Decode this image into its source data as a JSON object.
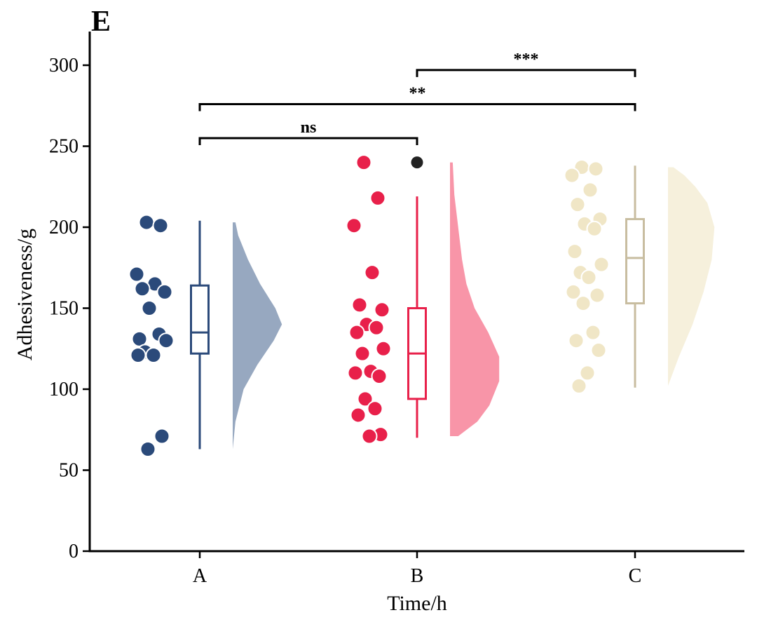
{
  "chart_data": {
    "type": "raincloud",
    "panel_label": "E",
    "xlabel": "Time/h",
    "ylabel": "Adhesiveness/g",
    "ylim": [
      0,
      320
    ],
    "yticks": [
      0,
      50,
      100,
      150,
      200,
      250,
      300
    ],
    "categories": [
      "A",
      "B",
      "C"
    ],
    "groups": [
      {
        "name": "A",
        "color": "#2b4a7a",
        "violin_color": "#97a8c0",
        "box": {
          "q1": 122,
          "median": 135,
          "q3": 164,
          "whisker_low": 63,
          "whisker_high": 204
        },
        "outliers": [],
        "points": [
          203,
          201,
          171,
          165,
          162,
          160,
          150,
          134,
          131,
          130,
          123,
          121,
          121,
          71,
          63
        ],
        "density": [
          [
            63,
            0.0
          ],
          [
            80,
            0.05
          ],
          [
            100,
            0.2
          ],
          [
            115,
            0.45
          ],
          [
            130,
            0.75
          ],
          [
            140,
            0.9
          ],
          [
            150,
            0.78
          ],
          [
            165,
            0.5
          ],
          [
            180,
            0.28
          ],
          [
            195,
            0.1
          ],
          [
            203,
            0.05
          ]
        ]
      },
      {
        "name": "B",
        "color": "#e8204a",
        "violin_color": "#f895a8",
        "box": {
          "q1": 94,
          "median": 122,
          "q3": 150,
          "whisker_low": 70,
          "whisker_high": 219
        },
        "outliers": [
          240
        ],
        "points": [
          240,
          218,
          201,
          172,
          152,
          149,
          140,
          138,
          135,
          125,
          122,
          111,
          110,
          108,
          94,
          88,
          84,
          72,
          71
        ],
        "density": [
          [
            71,
            0.15
          ],
          [
            80,
            0.5
          ],
          [
            90,
            0.72
          ],
          [
            105,
            0.9
          ],
          [
            120,
            0.9
          ],
          [
            135,
            0.7
          ],
          [
            150,
            0.45
          ],
          [
            165,
            0.3
          ],
          [
            180,
            0.22
          ],
          [
            200,
            0.15
          ],
          [
            220,
            0.08
          ],
          [
            240,
            0.05
          ]
        ]
      },
      {
        "name": "C",
        "color": "#c8bda0",
        "point_color": "#f0e6c6",
        "violin_color": "#f6f0dc",
        "box": {
          "q1": 153,
          "median": 181,
          "q3": 205,
          "whisker_low": 101,
          "whisker_high": 238
        },
        "outliers": [],
        "points": [
          237,
          236,
          232,
          223,
          214,
          205,
          202,
          199,
          185,
          177,
          172,
          169,
          160,
          158,
          153,
          135,
          130,
          124,
          110,
          102
        ],
        "density": [
          [
            102,
            0.0
          ],
          [
            120,
            0.2
          ],
          [
            140,
            0.45
          ],
          [
            160,
            0.65
          ],
          [
            180,
            0.8
          ],
          [
            200,
            0.85
          ],
          [
            215,
            0.72
          ],
          [
            225,
            0.5
          ],
          [
            232,
            0.3
          ],
          [
            237,
            0.1
          ]
        ]
      }
    ],
    "significance": [
      {
        "from": "A",
        "to": "B",
        "label": "ns",
        "level": 255
      },
      {
        "from": "A",
        "to": "C",
        "label": "**",
        "level": 276
      },
      {
        "from": "B",
        "to": "C",
        "label": "***",
        "level": 297
      }
    ]
  }
}
